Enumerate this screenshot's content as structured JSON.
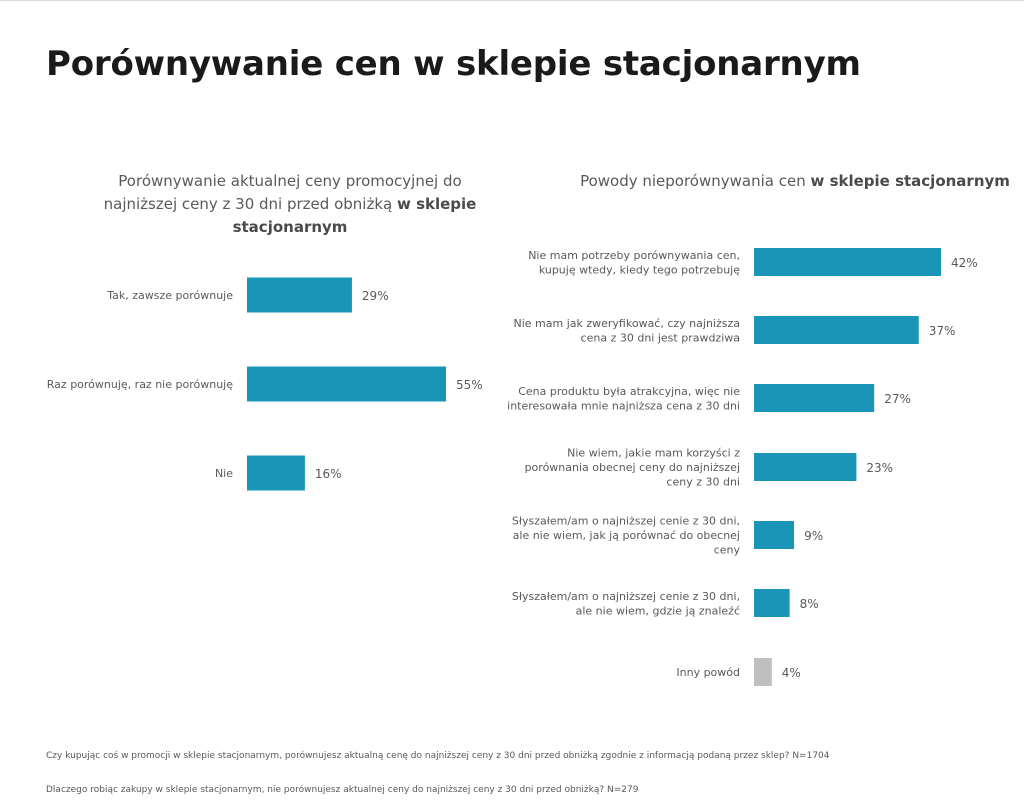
{
  "page": {
    "title": "Porównywanie cen w sklepie stacjonarnym",
    "footnotes": [
      "Czy kupując coś w promocji w sklepie stacjonarnym, porównujesz aktualną cenę do najniższej ceny z 30 dni przed obniżką zgodnie z informacją podaną przez sklep? N=1704",
      "Dlaczego robiąc zakupy w sklepie stacjonarnym, nie porównujesz aktualnej ceny do najniższej ceny z 30 dni przed obniżką? N=279"
    ]
  },
  "chart_data": [
    {
      "type": "bar",
      "orientation": "horizontal",
      "title": "Porównywanie aktualnej ceny promocyjnej do najniższej ceny z 30 dni przed obniżką w sklepie stacjonarnym",
      "title_parts": {
        "line1": "Porównywanie aktualnej ceny promocyjnej do",
        "line2_normal": "najniższej ceny z 30 dni przed obniżką",
        "line2_bold": "w sklepie",
        "line3_bold": "stacjonarnym"
      },
      "categories": [
        "Tak, zawsze porównuje",
        "Raz porównuję, raz nie porównuję",
        "Nie"
      ],
      "values": [
        29,
        55,
        16
      ],
      "value_labels": [
        "29%",
        "55%",
        "16%"
      ],
      "unit": "%",
      "bar_color": "#1a95b8",
      "grid": false,
      "legend": "none"
    },
    {
      "type": "bar",
      "orientation": "horizontal",
      "title": "Powody nieporównywania cen w sklepie stacjonarnym",
      "title_parts": {
        "normal": "Powody nieporównywania cen",
        "bold": "w sklepie stacjonarnym"
      },
      "categories": [
        "Nie mam potrzeby porównywania cen, kupuję wtedy, kiedy tego potrzebuję",
        "Nie mam jak zweryfikować, czy najniższa cena z 30 dni jest prawdziwa",
        "Cena produktu była atrakcyjna, więc nie interesowała mnie najniższa cena z 30 dni",
        "Nie wiem, jakie mam korzyści z porównania obecnej ceny do najniższej ceny z 30 dni",
        "Słyszałem/am o najniższej cenie z 30 dni, ale nie wiem, jak ją porównać do obecnej ceny",
        "Słyszałem/am o najniższej cenie z 30 dni, ale nie wiem, gdzie ją znaleźć",
        "Inny powód"
      ],
      "category_lines": [
        [
          "Nie mam potrzeby porównywania cen,",
          "kupuję wtedy, kiedy tego potrzebuję"
        ],
        [
          "Nie mam jak zweryfikować, czy najniższa",
          "cena z 30 dni jest prawdziwa"
        ],
        [
          "Cena produktu była atrakcyjna, więc nie",
          "interesowała mnie najniższa cena z 30 dni"
        ],
        [
          "Nie wiem, jakie mam korzyści z",
          "porównania obecnej ceny do najniższej",
          "ceny z 30 dni"
        ],
        [
          "Słyszałem/am o najniższej cenie z 30 dni,",
          "ale nie wiem, jak ją porównać do obecnej",
          "ceny"
        ],
        [
          "Słyszałem/am o najniższej cenie z 30 dni,",
          "ale nie wiem, gdzie ją znaleźć"
        ],
        [
          "Inny powód"
        ]
      ],
      "values": [
        42,
        37,
        27,
        23,
        9,
        8,
        4
      ],
      "value_labels": [
        "42%",
        "37%",
        "27%",
        "23%",
        "9%",
        "8%",
        "4%"
      ],
      "unit": "%",
      "bar_color": "#1a95b8",
      "other_bar_color": "#bfbfbf",
      "grid": false,
      "legend": "none"
    }
  ]
}
